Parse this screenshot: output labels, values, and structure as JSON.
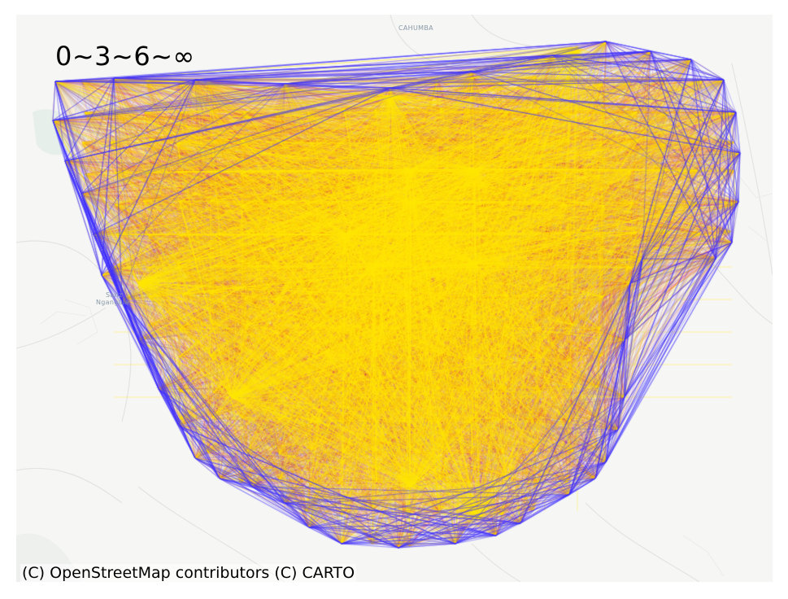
{
  "map": {
    "legend_text": "0~3~6~∞",
    "attribution": "(C) OpenStreetMap contributors (C) CARTO",
    "places": [
      {
        "name": "CAHUMBA"
      },
      {
        "name": "Sanz"
      },
      {
        "name": "Ngangula"
      }
    ],
    "colors": {
      "background": "#f6f6f4",
      "roads": "#e2e2e0",
      "low": "#3b2bff",
      "mid": "#e0001b",
      "high": "#ffe600"
    }
  }
}
